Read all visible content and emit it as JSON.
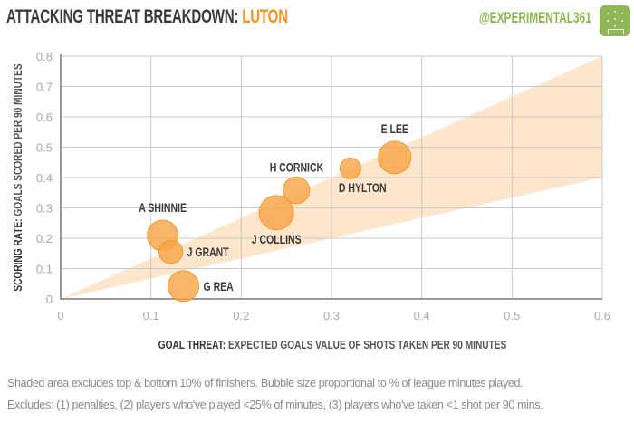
{
  "header": {
    "title": "ATTACKING THREAT BREAKDOWN:",
    "team": "LUTON",
    "handle": "@EXPERIMENTAL361",
    "logo_icon": "pitch-icon"
  },
  "colors": {
    "bubble_fill": "#f7a446",
    "bubble_stroke": "#f39a2e",
    "band": "#fde6cc",
    "accent": "#f7941d",
    "brand": "#8ab84a",
    "grid": "#c8c8c8"
  },
  "chart_data": {
    "type": "scatter",
    "subtype": "bubble",
    "xlabel_bold": "GOAL THREAT:",
    "xlabel": "EXPECTED GOALS VALUE OF SHOTS  TAKEN PER 90 MINUTES",
    "ylabel_bold": "SCORING RATE:",
    "ylabel": "GOALS SCORED PER 90 MINUTES",
    "xlim": [
      0,
      0.6
    ],
    "ylim": [
      0,
      0.8
    ],
    "xticks": [
      "0",
      "0.1",
      "0.2",
      "0.3",
      "0.4",
      "0.5",
      "0.6"
    ],
    "yticks": [
      "0",
      "0.1",
      "0.2",
      "0.3",
      "0.4",
      "0.5",
      "0.6",
      "0.7",
      "0.8"
    ],
    "grid": true,
    "band": {
      "upper_slope": 1.333,
      "lower_slope": 0.667
    },
    "points": [
      {
        "name": "E LEE",
        "x": 0.37,
        "y": 0.466,
        "size": 0.9,
        "label_pos": "above"
      },
      {
        "name": "D HYLTON",
        "x": 0.321,
        "y": 0.43,
        "size": 0.37,
        "label_pos": "below"
      },
      {
        "name": "H CORNICK",
        "x": 0.261,
        "y": 0.358,
        "size": 0.6,
        "label_pos": "above-left"
      },
      {
        "name": "J COLLINS",
        "x": 0.239,
        "y": 0.284,
        "size": 1.0,
        "label_pos": "below"
      },
      {
        "name": "A SHINNIE",
        "x": 0.113,
        "y": 0.209,
        "size": 0.8,
        "label_pos": "above"
      },
      {
        "name": "J GRANT",
        "x": 0.122,
        "y": 0.155,
        "size": 0.47,
        "label_pos": "right"
      },
      {
        "name": "G REA",
        "x": 0.136,
        "y": 0.042,
        "size": 0.8,
        "label_pos": "right"
      }
    ]
  },
  "notes": {
    "line1": "Shaded area excludes top & bottom 10% of finishers. Bubble size proportional to % of league minutes played.",
    "line2": "Excludes: (1) penalties, (2) players who've played <25% of minutes, (3) players who've taken <1 shot per 90 mins."
  }
}
